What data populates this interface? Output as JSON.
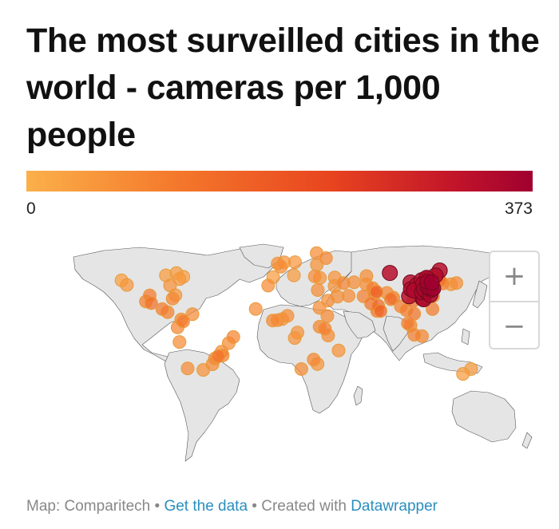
{
  "title": "The most surveilled cities in the world - cameras per 1,000 people",
  "legend": {
    "min": "0",
    "max": "373",
    "min_value": 0,
    "max_value": 373,
    "colors": [
      "#fbb04a",
      "#f4782b",
      "#e8451f",
      "#c1142a",
      "#a00030"
    ]
  },
  "map": {
    "land_color": "#e5e5e5",
    "marker_border": "#e89a3c",
    "cities_description_units": "cameras per 1,000 people",
    "markers": [
      {
        "lon": -122.4,
        "lat": 37.8,
        "value": 4
      },
      {
        "lon": -118.2,
        "lat": 34.1,
        "value": 8
      },
      {
        "lon": -99.1,
        "lat": 19.4,
        "value": 40
      },
      {
        "lon": -100.3,
        "lat": 25.7,
        "value": 30
      },
      {
        "lon": -103.3,
        "lat": 20.7,
        "value": 25
      },
      {
        "lon": -87.6,
        "lat": 41.9,
        "value": 5
      },
      {
        "lon": -79.4,
        "lat": 43.7,
        "value": 5
      },
      {
        "lon": -74.0,
        "lat": 40.7,
        "value": 3
      },
      {
        "lon": -77.0,
        "lat": 38.9,
        "value": 6
      },
      {
        "lon": -84.4,
        "lat": 33.7,
        "value": 10
      },
      {
        "lon": -80.2,
        "lat": 25.8,
        "value": 8
      },
      {
        "lon": -90.5,
        "lat": 14.6,
        "value": 30
      },
      {
        "lon": -86.3,
        "lat": 12.1,
        "value": 25
      },
      {
        "lon": -82.4,
        "lat": 23.1,
        "value": 20
      },
      {
        "lon": -74.1,
        "lat": 4.7,
        "value": 30
      },
      {
        "lon": -75.6,
        "lat": 6.2,
        "value": 20
      },
      {
        "lon": -66.9,
        "lat": 10.5,
        "value": 15
      },
      {
        "lon": -78.5,
        "lat": -0.2,
        "value": 20
      },
      {
        "lon": -77.0,
        "lat": -12.0,
        "value": 15
      },
      {
        "lon": -34.9,
        "lat": -8.0,
        "value": 20
      },
      {
        "lon": -38.5,
        "lat": -12.9,
        "value": 15
      },
      {
        "lon": -43.2,
        "lat": -22.9,
        "value": 25
      },
      {
        "lon": -46.6,
        "lat": -23.5,
        "value": 35
      },
      {
        "lon": -44.0,
        "lat": -19.9,
        "value": 15
      },
      {
        "lon": -49.3,
        "lat": -25.4,
        "value": 20
      },
      {
        "lon": -51.2,
        "lat": -30.0,
        "value": 15
      },
      {
        "lon": -58.4,
        "lat": -34.6,
        "value": 10
      },
      {
        "lon": -70.6,
        "lat": -33.4,
        "value": 15
      },
      {
        "lon": -0.1,
        "lat": 51.5,
        "value": 13
      },
      {
        "lon": 2.35,
        "lat": 48.9,
        "value": 15
      },
      {
        "lon": -3.7,
        "lat": 40.4,
        "value": 5
      },
      {
        "lon": 13.4,
        "lat": 52.5,
        "value": 8
      },
      {
        "lon": 12.5,
        "lat": 41.9,
        "value": 5
      },
      {
        "lon": 4.9,
        "lat": 52.4,
        "value": 10
      },
      {
        "lon": 30.3,
        "lat": 59.9,
        "value": 15
      },
      {
        "lon": 37.6,
        "lat": 55.8,
        "value": 16
      },
      {
        "lon": 30.5,
        "lat": 50.4,
        "value": 10
      },
      {
        "lon": 28.9,
        "lat": 41.0,
        "value": 15
      },
      {
        "lon": 32.9,
        "lat": 39.9,
        "value": 10
      },
      {
        "lon": 44.5,
        "lat": 40.2,
        "value": 10
      },
      {
        "lon": 51.4,
        "lat": 35.7,
        "value": 20
      },
      {
        "lon": 59.6,
        "lat": 36.3,
        "value": 15
      },
      {
        "lon": 44.4,
        "lat": 33.3,
        "value": 10
      },
      {
        "lon": 31.2,
        "lat": 30.0,
        "value": 15
      },
      {
        "lon": 46.7,
        "lat": 24.7,
        "value": 15
      },
      {
        "lon": 39.2,
        "lat": 21.5,
        "value": 15
      },
      {
        "lon": 55.3,
        "lat": 25.3,
        "value": 15
      },
      {
        "lon": 67.0,
        "lat": 24.9,
        "value": 25
      },
      {
        "lon": 74.3,
        "lat": 31.5,
        "value": 30
      },
      {
        "lon": 69.2,
        "lat": 34.5,
        "value": 15
      },
      {
        "lon": 69.3,
        "lat": 41.3,
        "value": 15
      },
      {
        "lon": 77.2,
        "lat": 28.6,
        "value": 60
      },
      {
        "lon": 72.9,
        "lat": 19.1,
        "value": 40
      },
      {
        "lon": 78.5,
        "lat": 17.4,
        "value": 50
      },
      {
        "lon": 80.3,
        "lat": 13.1,
        "value": 55
      },
      {
        "lon": 77.6,
        "lat": 13.0,
        "value": 40
      },
      {
        "lon": 88.4,
        "lat": 22.6,
        "value": 45
      },
      {
        "lon": 90.4,
        "lat": 23.8,
        "value": 30
      },
      {
        "lon": 75.8,
        "lat": 26.9,
        "value": 35
      },
      {
        "lon": 85.3,
        "lat": 27.7,
        "value": 20
      },
      {
        "lon": 96.2,
        "lat": 16.8,
        "value": 25
      },
      {
        "lon": 100.5,
        "lat": 13.8,
        "value": 30
      },
      {
        "lon": 105.8,
        "lat": 21.0,
        "value": 40
      },
      {
        "lon": 106.7,
        "lat": 10.8,
        "value": 35
      },
      {
        "lon": 101.7,
        "lat": 3.1,
        "value": 30
      },
      {
        "lon": 103.8,
        "lat": 1.35,
        "value": 20
      },
      {
        "lon": 106.8,
        "lat": -6.2,
        "value": 25
      },
      {
        "lon": 112.8,
        "lat": -7.3,
        "value": 20
      },
      {
        "lon": 121.0,
        "lat": 14.6,
        "value": 30
      },
      {
        "lon": 87.6,
        "lat": 43.8,
        "value": 260
      },
      {
        "lon": 116.4,
        "lat": 39.9,
        "value": 300
      },
      {
        "lon": 117.2,
        "lat": 39.1,
        "value": 280
      },
      {
        "lon": 123.4,
        "lat": 41.8,
        "value": 290
      },
      {
        "lon": 126.6,
        "lat": 45.8,
        "value": 260
      },
      {
        "lon": 121.5,
        "lat": 31.2,
        "value": 370
      },
      {
        "lon": 120.2,
        "lat": 30.3,
        "value": 330
      },
      {
        "lon": 118.8,
        "lat": 32.1,
        "value": 340
      },
      {
        "lon": 113.3,
        "lat": 23.1,
        "value": 300
      },
      {
        "lon": 114.1,
        "lat": 22.5,
        "value": 300
      },
      {
        "lon": 104.1,
        "lat": 30.7,
        "value": 280
      },
      {
        "lon": 106.5,
        "lat": 29.6,
        "value": 300
      },
      {
        "lon": 108.9,
        "lat": 34.3,
        "value": 290
      },
      {
        "lon": 114.3,
        "lat": 30.6,
        "value": 320
      },
      {
        "lon": 113.6,
        "lat": 34.7,
        "value": 310
      },
      {
        "lon": 117.0,
        "lat": 36.7,
        "value": 350
      },
      {
        "lon": 120.4,
        "lat": 36.1,
        "value": 373
      },
      {
        "lon": 112.5,
        "lat": 37.9,
        "value": 290
      },
      {
        "lon": 119.3,
        "lat": 26.1,
        "value": 320
      },
      {
        "lon": 112.9,
        "lat": 28.2,
        "value": 300
      },
      {
        "lon": 115.9,
        "lat": 28.7,
        "value": 310
      },
      {
        "lon": 117.3,
        "lat": 31.9,
        "value": 330
      },
      {
        "lon": 103.8,
        "lat": 36.1,
        "value": 260
      },
      {
        "lon": 102.7,
        "lat": 25.0,
        "value": 250
      },
      {
        "lon": 121.5,
        "lat": 25.0,
        "value": 20
      },
      {
        "lon": 126.9,
        "lat": 37.6,
        "value": 40
      },
      {
        "lon": 129.1,
        "lat": 35.2,
        "value": 25
      },
      {
        "lon": 139.7,
        "lat": 35.7,
        "value": 15
      },
      {
        "lon": 135.5,
        "lat": 34.7,
        "value": 10
      },
      {
        "lon": 125.8,
        "lat": 39.0,
        "value": 15
      },
      {
        "lon": -17.4,
        "lat": 14.7,
        "value": 15
      },
      {
        "lon": -7.6,
        "lat": 33.6,
        "value": 15
      },
      {
        "lon": 3.4,
        "lat": 6.5,
        "value": 10
      },
      {
        "lon": -0.2,
        "lat": 5.6,
        "value": 15
      },
      {
        "lon": -4.0,
        "lat": 5.3,
        "value": 20
      },
      {
        "lon": 7.5,
        "lat": 9.1,
        "value": 15
      },
      {
        "lon": 15.3,
        "lat": -4.3,
        "value": 10
      },
      {
        "lon": 13.2,
        "lat": -8.8,
        "value": 10
      },
      {
        "lon": 36.8,
        "lat": -1.3,
        "value": 25
      },
      {
        "lon": 39.3,
        "lat": -6.8,
        "value": 15
      },
      {
        "lon": 32.6,
        "lat": 0.3,
        "value": 20
      },
      {
        "lon": 38.7,
        "lat": 9.0,
        "value": 15
      },
      {
        "lon": 32.5,
        "lat": 15.6,
        "value": 15
      },
      {
        "lon": 28.0,
        "lat": -26.2,
        "value": 20
      },
      {
        "lon": 18.4,
        "lat": -33.9,
        "value": 15
      },
      {
        "lon": 31.0,
        "lat": -29.9,
        "value": 10
      },
      {
        "lon": 47.5,
        "lat": -18.9,
        "value": 10
      },
      {
        "lon": 151.2,
        "lat": -33.9,
        "value": 5
      },
      {
        "lon": 144.9,
        "lat": -37.8,
        "value": 5
      }
    ]
  },
  "zoom": {
    "in_label": "+",
    "out_label": "−"
  },
  "footer": {
    "prefix": "Map: Comparitech",
    "sep1": " • ",
    "get_data": "Get the data",
    "sep2": " • ",
    "created": "Created with ",
    "datawrapper": "Datawrapper"
  }
}
